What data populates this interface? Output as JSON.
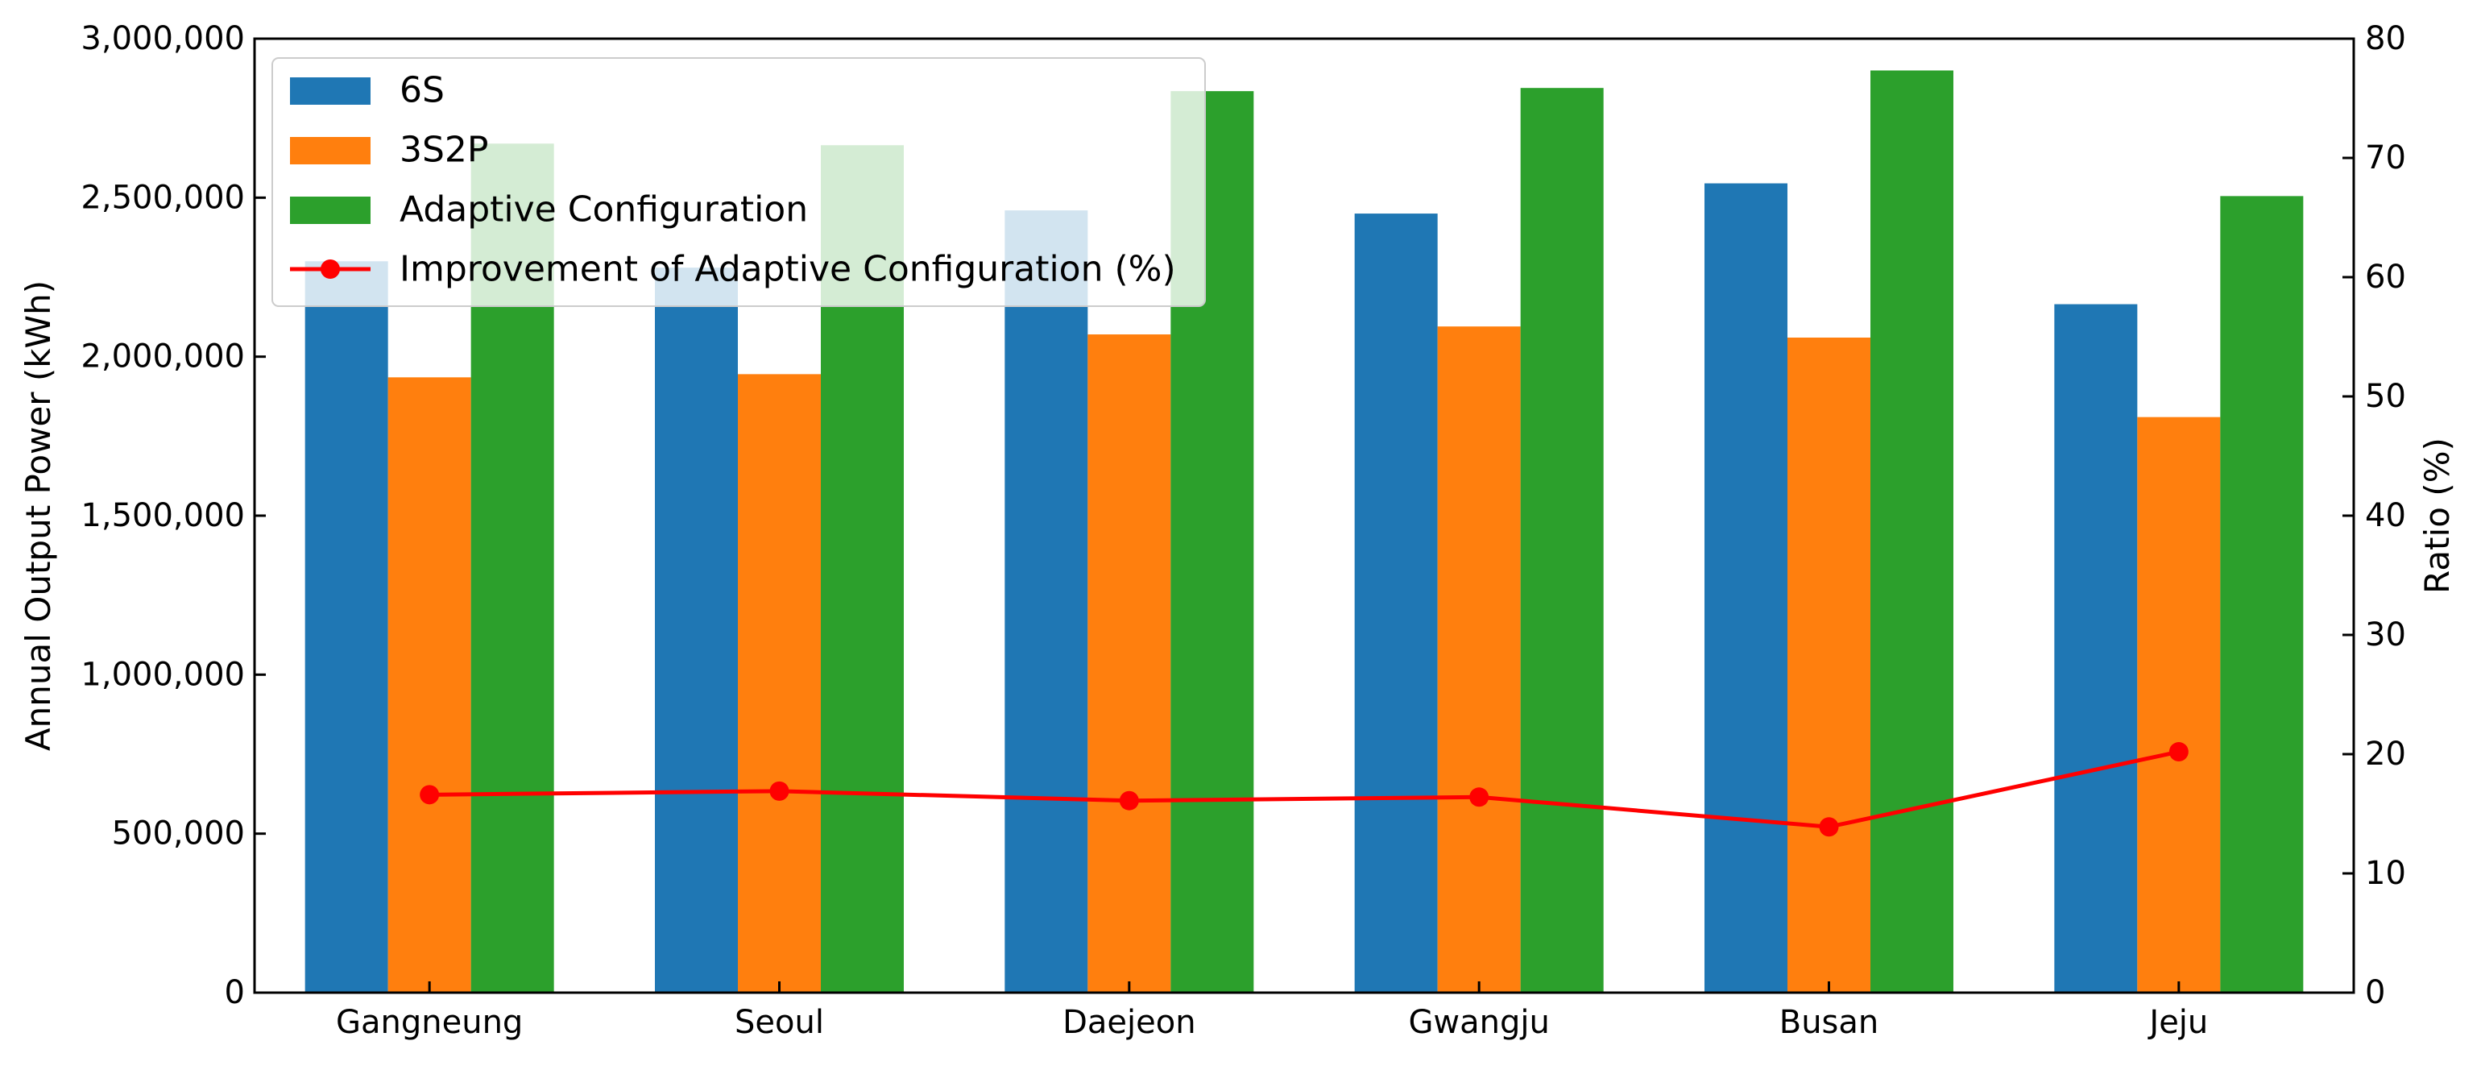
{
  "chart_data": {
    "type": "bar",
    "title": "",
    "xlabel": "",
    "ylabel": "Annual Output Power (kWh)",
    "y2label": "Ratio (%)",
    "ylim": [
      0,
      3000000
    ],
    "y2lim": [
      0,
      80
    ],
    "yticks": [
      "0",
      "500,000",
      "1,000,000",
      "1,500,000",
      "2,000,000",
      "2,500,000",
      "3,000,000"
    ],
    "y2ticks": [
      "0",
      "10",
      "20",
      "30",
      "40",
      "50",
      "60",
      "70",
      "80"
    ],
    "grid": false,
    "legend_position": "top-left",
    "categories": [
      "Gangneung",
      "Seoul",
      "Daejeon",
      "Gwangju",
      "Busan",
      "Jeju"
    ],
    "series": [
      {
        "name": "6S",
        "type": "bar",
        "axis": "left",
        "color": "#1f77b4",
        "values": [
          2300000,
          2280000,
          2460000,
          2450000,
          2545000,
          2165000
        ]
      },
      {
        "name": "3S2P",
        "type": "bar",
        "axis": "left",
        "color": "#ff7f0e",
        "values": [
          1935000,
          1945000,
          2070000,
          2095000,
          2060000,
          1810000
        ]
      },
      {
        "name": "Adaptive Configuration",
        "type": "bar",
        "axis": "left",
        "color": "#2ca02c",
        "values": [
          2670000,
          2665000,
          2835000,
          2845000,
          2900000,
          2505000
        ]
      },
      {
        "name": "Improvement of Adaptive Configuration (%)",
        "type": "line",
        "axis": "right",
        "color": "#ff0000",
        "values": [
          16.6,
          16.9,
          16.1,
          16.4,
          13.9,
          20.2
        ]
      }
    ]
  }
}
